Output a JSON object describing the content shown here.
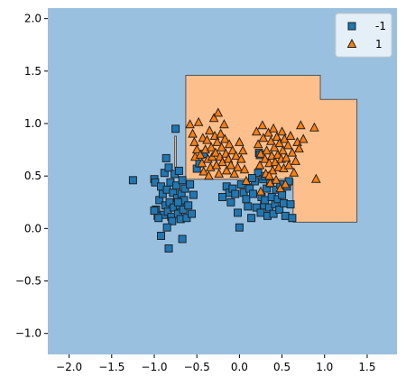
{
  "chart_data": {
    "type": "scatter",
    "subtype": "decision-region",
    "title": "",
    "xlabel": "",
    "ylabel": "",
    "xlim": [
      -2.25,
      1.85
    ],
    "ylim": [
      -1.2,
      2.1
    ],
    "x_ticks": [
      "−2.0",
      "−1.5",
      "−1.0",
      "−0.5",
      "0.0",
      "0.5",
      "1.0",
      "1.5"
    ],
    "x_tick_values": [
      -2.0,
      -1.5,
      -1.0,
      -0.5,
      0.0,
      0.5,
      1.0,
      1.5
    ],
    "y_ticks": [
      "2.0",
      "1.5",
      "1.0",
      "0.5",
      "0.0",
      "−0.5",
      "−1.0"
    ],
    "y_tick_values": [
      2.0,
      1.5,
      1.0,
      0.5,
      0.0,
      -0.5,
      -1.0
    ],
    "grid": false,
    "legend_position": "top-right",
    "colors": {
      "region_neg": "#99c0df",
      "region_pos": "#fdbf8c",
      "marker_neg": "#1f77b4",
      "marker_pos": "#ff7f0e",
      "edge": "#222222"
    },
    "regions": [
      {
        "class": "1",
        "polygon": [
          [
            -0.63,
            1.46
          ],
          [
            0.95,
            1.46
          ],
          [
            0.95,
            1.23
          ],
          [
            1.38,
            1.23
          ],
          [
            1.38,
            0.06
          ],
          [
            0.63,
            0.06
          ],
          [
            0.63,
            0.47
          ],
          [
            -0.63,
            0.47
          ]
        ]
      },
      {
        "class": "1",
        "polygon": [
          [
            -0.76,
            0.88
          ],
          [
            -0.74,
            0.88
          ],
          [
            -0.74,
            0.57
          ],
          [
            -0.76,
            0.57
          ]
        ]
      }
    ],
    "series": [
      {
        "name": "-1",
        "marker": "square",
        "points": [
          [
            -1.25,
            0.46
          ],
          [
            -1.0,
            0.47
          ],
          [
            -0.99,
            0.44
          ],
          [
            -0.98,
            0.18
          ],
          [
            -0.96,
            0.12
          ],
          [
            -0.94,
            0.27
          ],
          [
            -0.92,
            0.4
          ],
          [
            -0.9,
            0.33
          ],
          [
            -0.89,
            0.13
          ],
          [
            -0.88,
            0.53
          ],
          [
            -0.87,
            0.22
          ],
          [
            -0.86,
            0.67
          ],
          [
            -0.85,
            0.37
          ],
          [
            -0.84,
            0.16
          ],
          [
            -0.83,
            0.58
          ],
          [
            -0.82,
            0.25
          ],
          [
            -0.81,
            0.44
          ],
          [
            -0.8,
            0.11
          ],
          [
            -0.79,
            0.07
          ],
          [
            -0.78,
            0.34
          ],
          [
            -0.77,
            0.2
          ],
          [
            -0.76,
            0.52
          ],
          [
            -0.75,
            0.95
          ],
          [
            -0.74,
            0.41
          ],
          [
            -0.73,
            0.29
          ],
          [
            -0.72,
            0.14
          ],
          [
            -0.71,
            0.55
          ],
          [
            -0.7,
            0.22
          ],
          [
            -0.69,
            0.09
          ],
          [
            -0.68,
            0.33
          ],
          [
            -0.67,
            0.46
          ],
          [
            -0.66,
            0.18
          ],
          [
            -0.65,
            0.27
          ],
          [
            -0.64,
            0.38
          ],
          [
            -0.62,
            0.1
          ],
          [
            -0.6,
            0.22
          ],
          [
            -0.58,
            0.42
          ],
          [
            -0.56,
            0.14
          ],
          [
            -0.54,
            0.32
          ],
          [
            -0.5,
            0.57
          ],
          [
            -0.47,
            0.62
          ],
          [
            -0.42,
            0.71
          ],
          [
            -0.85,
            0.01
          ],
          [
            -0.92,
            -0.07
          ],
          [
            -0.67,
            -0.1
          ],
          [
            -0.83,
            -0.19
          ],
          [
            -1.0,
            0.17
          ],
          [
            -0.95,
            0.1
          ],
          [
            -0.72,
            0.25
          ],
          [
            -0.15,
            0.4
          ],
          [
            -0.12,
            0.34
          ],
          [
            -0.1,
            0.25
          ],
          [
            -0.08,
            0.38
          ],
          [
            -0.05,
            0.33
          ],
          [
            -0.02,
            0.15
          ],
          [
            0.0,
            0.01
          ],
          [
            0.02,
            0.42
          ],
          [
            0.05,
            0.34
          ],
          [
            0.08,
            0.28
          ],
          [
            0.1,
            0.21
          ],
          [
            0.12,
            0.38
          ],
          [
            0.14,
            0.1
          ],
          [
            0.16,
            0.33
          ],
          [
            0.18,
            0.45
          ],
          [
            0.2,
            0.2
          ],
          [
            0.22,
            0.53
          ],
          [
            0.23,
            0.72
          ],
          [
            0.24,
            0.7
          ],
          [
            0.25,
            0.15
          ],
          [
            0.26,
            0.3
          ],
          [
            0.28,
            0.47
          ],
          [
            0.29,
            0.22
          ],
          [
            0.3,
            0.27
          ],
          [
            0.32,
            0.38
          ],
          [
            0.33,
            0.12
          ],
          [
            0.35,
            0.2
          ],
          [
            0.36,
            0.43
          ],
          [
            0.38,
            0.3
          ],
          [
            0.4,
            0.14
          ],
          [
            0.42,
            0.23
          ],
          [
            0.43,
            0.37
          ],
          [
            0.45,
            0.28
          ],
          [
            0.47,
            0.18
          ],
          [
            0.48,
            0.42
          ],
          [
            0.5,
            0.32
          ],
          [
            0.52,
            0.24
          ],
          [
            0.54,
            0.12
          ],
          [
            0.56,
            0.4
          ],
          [
            0.58,
            0.45
          ],
          [
            0.6,
            0.23
          ],
          [
            0.62,
            0.1
          ],
          [
            0.3,
            0.5
          ],
          [
            0.15,
            0.48
          ],
          [
            -0.2,
            0.3
          ]
        ]
      },
      {
        "name": "1",
        "marker": "triangle",
        "points": [
          [
            -0.58,
            0.99
          ],
          [
            -0.55,
            0.9
          ],
          [
            -0.53,
            0.82
          ],
          [
            -0.52,
            0.68
          ],
          [
            -0.5,
            0.75
          ],
          [
            -0.48,
            1.01
          ],
          [
            -0.46,
            0.7
          ],
          [
            -0.44,
            0.62
          ],
          [
            -0.43,
            0.86
          ],
          [
            -0.42,
            0.54
          ],
          [
            -0.4,
            0.75
          ],
          [
            -0.38,
            0.84
          ],
          [
            -0.37,
            0.66
          ],
          [
            -0.36,
            0.5
          ],
          [
            -0.35,
            0.93
          ],
          [
            -0.34,
            0.58
          ],
          [
            -0.33,
            0.77
          ],
          [
            -0.32,
            0.68
          ],
          [
            -0.3,
            1.05
          ],
          [
            -0.29,
            0.88
          ],
          [
            -0.28,
            0.72
          ],
          [
            -0.27,
            0.6
          ],
          [
            -0.26,
            0.82
          ],
          [
            -0.25,
            1.1
          ],
          [
            -0.24,
            0.52
          ],
          [
            -0.23,
            0.68
          ],
          [
            -0.22,
            0.9
          ],
          [
            -0.21,
            0.77
          ],
          [
            -0.2,
            0.63
          ],
          [
            -0.18,
            0.99
          ],
          [
            -0.17,
            0.85
          ],
          [
            -0.16,
            0.71
          ],
          [
            -0.15,
            0.55
          ],
          [
            -0.13,
            0.66
          ],
          [
            -0.12,
            0.8
          ],
          [
            -0.1,
            0.6
          ],
          [
            -0.08,
            0.74
          ],
          [
            -0.06,
            0.52
          ],
          [
            -0.04,
            0.69
          ],
          [
            -0.02,
            0.58
          ],
          [
            0.0,
            0.82
          ],
          [
            0.02,
            0.66
          ],
          [
            0.04,
            0.74
          ],
          [
            0.06,
            0.56
          ],
          [
            0.08,
            0.45
          ],
          [
            0.2,
            0.92
          ],
          [
            0.22,
            0.8
          ],
          [
            0.24,
            0.6
          ],
          [
            0.25,
            0.71
          ],
          [
            0.27,
            0.98
          ],
          [
            0.28,
            0.86
          ],
          [
            0.3,
            0.66
          ],
          [
            0.31,
            0.52
          ],
          [
            0.32,
            0.74
          ],
          [
            0.34,
            0.91
          ],
          [
            0.35,
            0.62
          ],
          [
            0.36,
            0.43
          ],
          [
            0.37,
            0.83
          ],
          [
            0.38,
            0.69
          ],
          [
            0.39,
            0.55
          ],
          [
            0.4,
            0.95
          ],
          [
            0.41,
            0.77
          ],
          [
            0.42,
            0.63
          ],
          [
            0.43,
            0.46
          ],
          [
            0.44,
            0.87
          ],
          [
            0.45,
            0.7
          ],
          [
            0.46,
            0.58
          ],
          [
            0.47,
            0.81
          ],
          [
            0.48,
            0.38
          ],
          [
            0.49,
            0.66
          ],
          [
            0.5,
            0.92
          ],
          [
            0.51,
            0.74
          ],
          [
            0.52,
            0.57
          ],
          [
            0.53,
            0.85
          ],
          [
            0.54,
            0.42
          ],
          [
            0.55,
            0.67
          ],
          [
            0.57,
            0.79
          ],
          [
            0.58,
            0.6
          ],
          [
            0.6,
            0.88
          ],
          [
            0.62,
            0.72
          ],
          [
            0.64,
            0.53
          ],
          [
            0.66,
            0.64
          ],
          [
            0.68,
            0.82
          ],
          [
            0.7,
            0.76
          ],
          [
            0.72,
            0.98
          ],
          [
            0.75,
            0.85
          ],
          [
            0.88,
            0.96
          ],
          [
            0.9,
            0.47
          ],
          [
            0.25,
            0.35
          ],
          [
            0.35,
            0.5
          ]
        ]
      }
    ],
    "legend": [
      {
        "label": "-1",
        "marker": "square"
      },
      {
        "label": "1",
        "marker": "triangle"
      }
    ]
  }
}
